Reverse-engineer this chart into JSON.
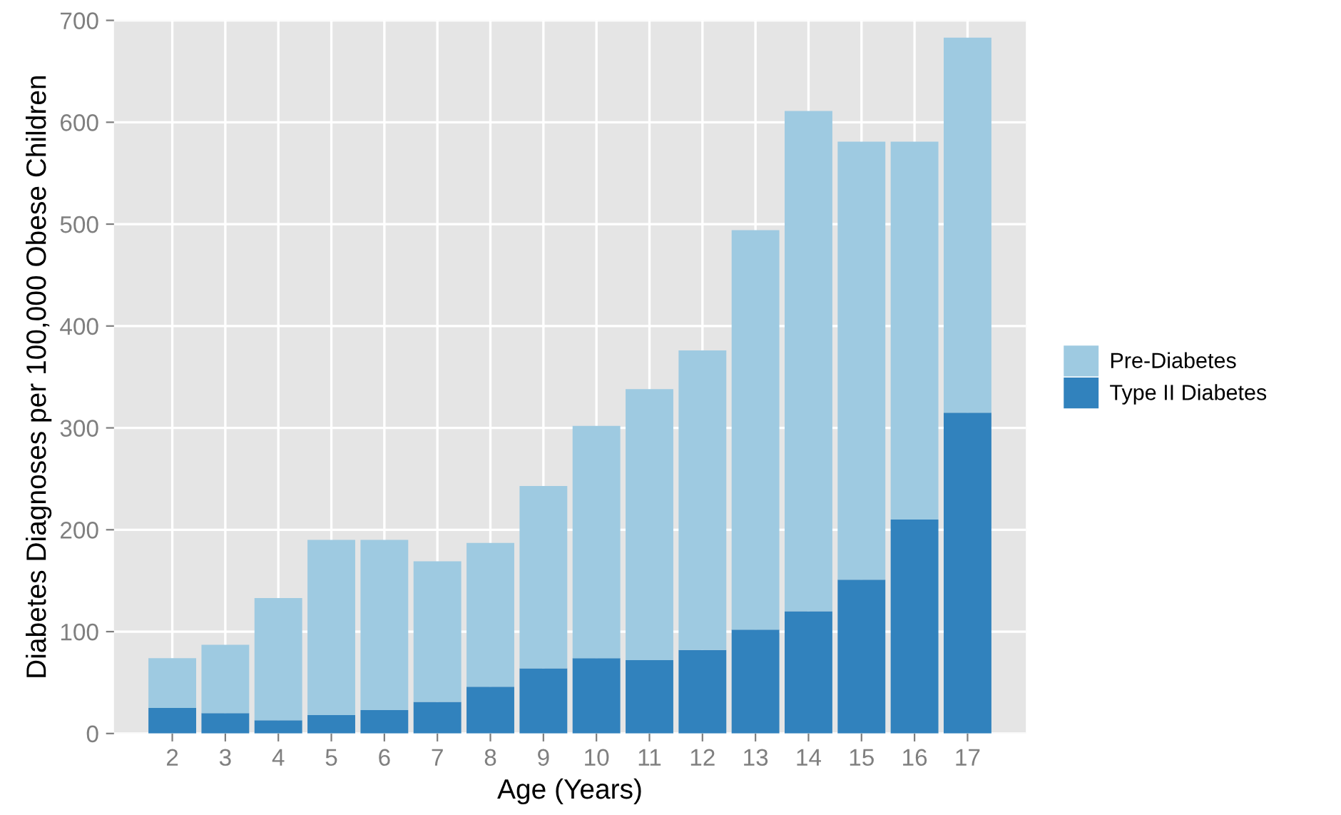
{
  "chart_data": {
    "type": "bar",
    "stacked": true,
    "xlabel": "Age (Years)",
    "ylabel": "Diabetes Diagnoses per 100,000 Obese Children",
    "categories": [
      "2",
      "3",
      "4",
      "5",
      "6",
      "7",
      "8",
      "9",
      "10",
      "11",
      "12",
      "13",
      "14",
      "15",
      "16",
      "17"
    ],
    "series": [
      {
        "name": "Type II Diabetes",
        "color": "#3182bd",
        "values": [
          25,
          20,
          13,
          18,
          23,
          31,
          46,
          64,
          74,
          72,
          82,
          102,
          120,
          151,
          210,
          315
        ]
      },
      {
        "name": "Pre-Diabetes",
        "color": "#9ecae1",
        "values": [
          49,
          67,
          120,
          172,
          167,
          138,
          141,
          179,
          228,
          266,
          294,
          392,
          491,
          430,
          371,
          368
        ]
      }
    ],
    "ylim": [
      0,
      700
    ],
    "yticks": [
      0,
      100,
      200,
      300,
      400,
      500,
      600,
      700
    ],
    "grid": true,
    "legend": "right"
  }
}
